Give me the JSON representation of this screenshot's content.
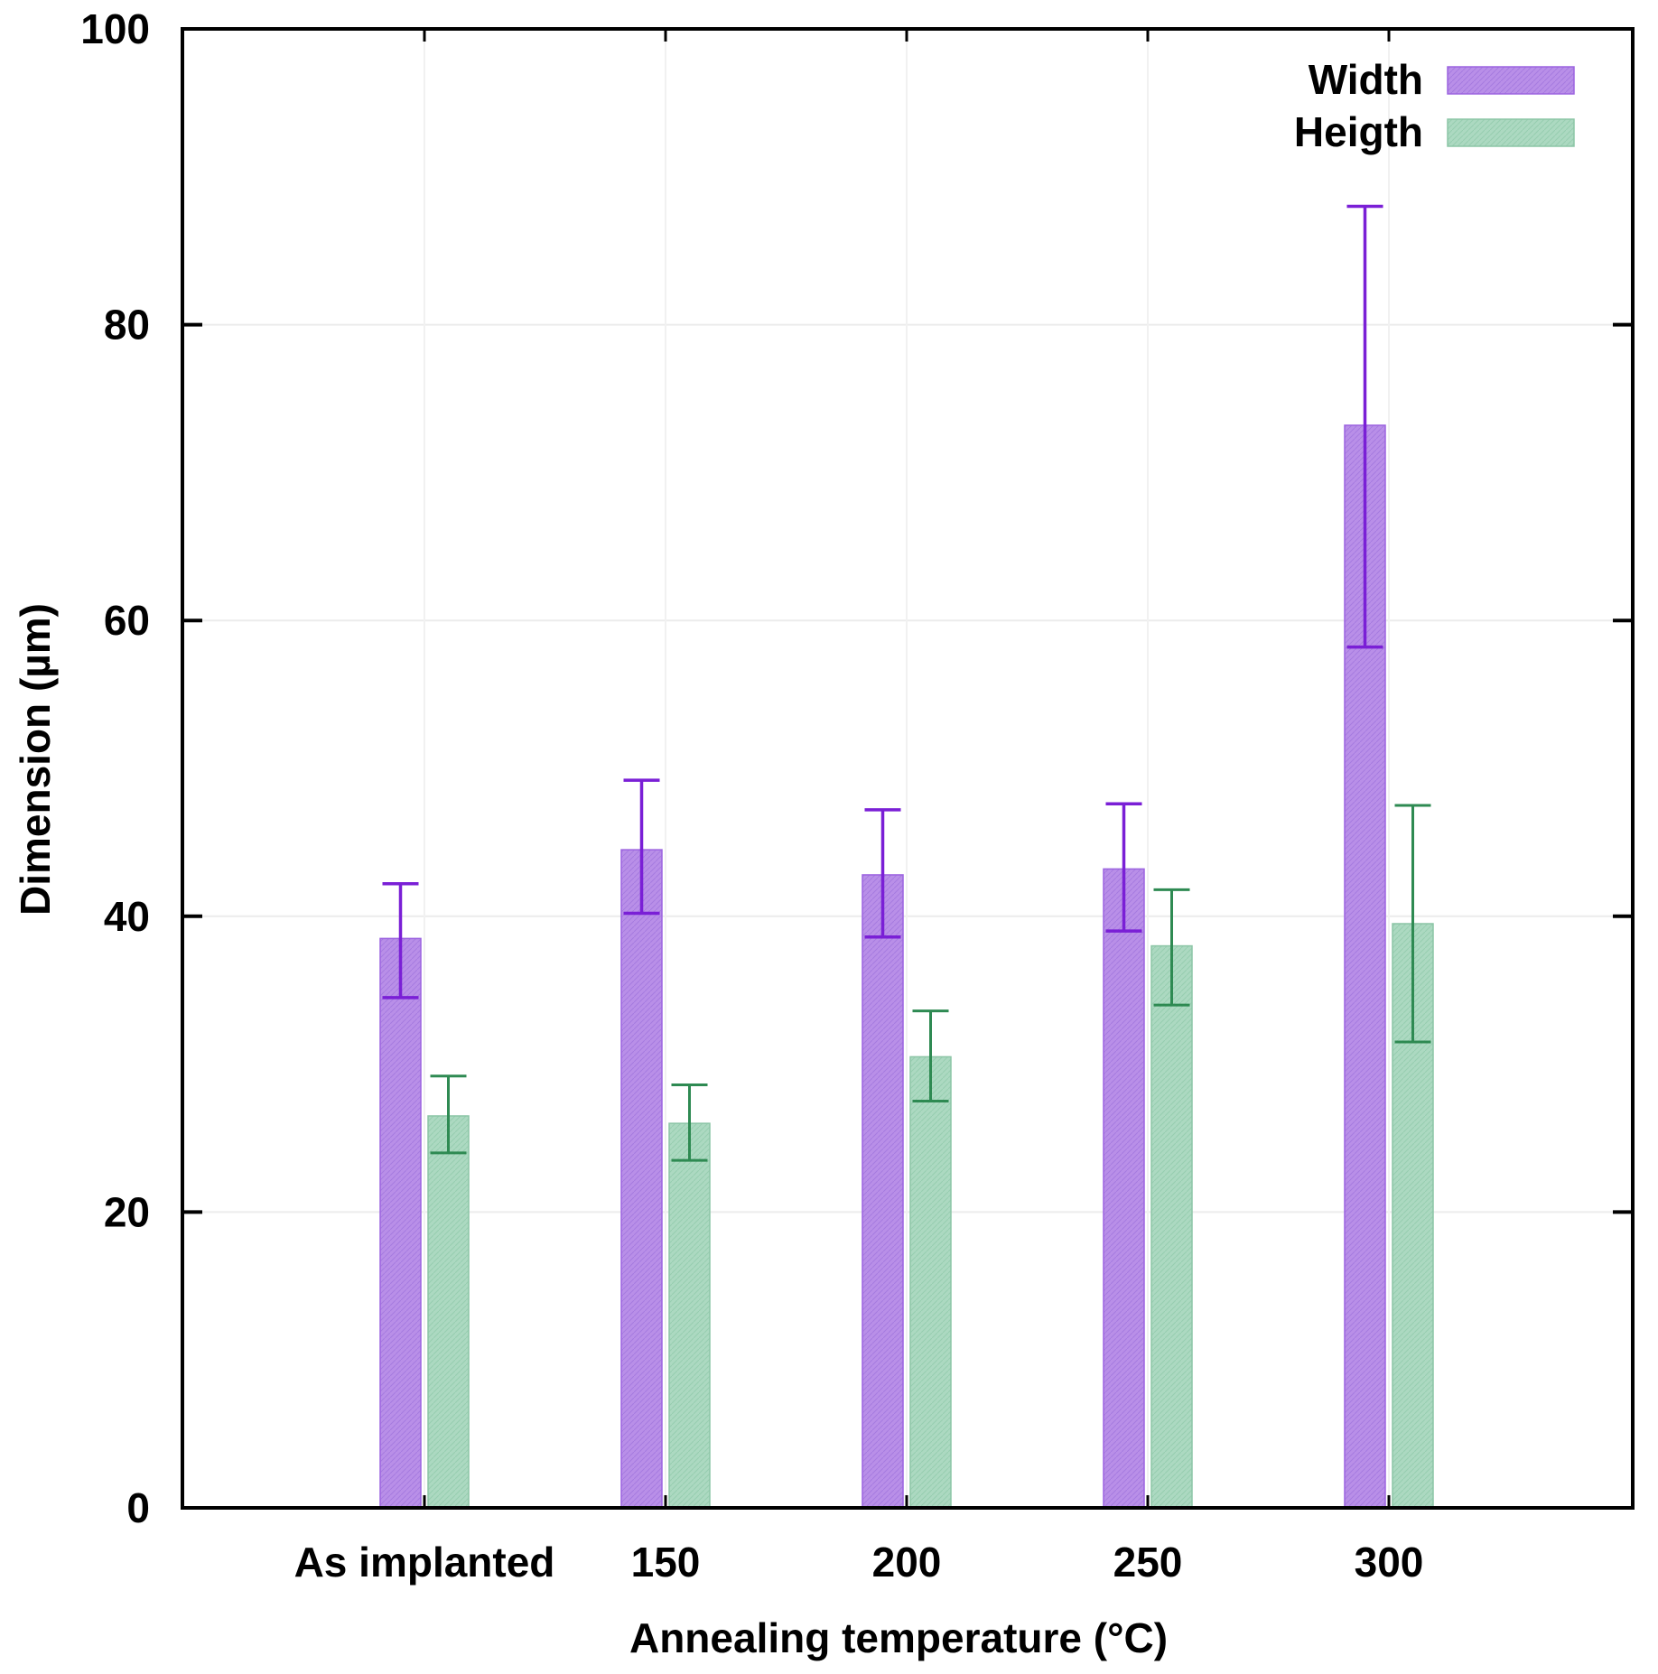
{
  "chart_data": {
    "type": "bar",
    "title": "",
    "xlabel": "Annealing temperature (°C)",
    "ylabel": "Dimension (µm)",
    "ylim": [
      0,
      100
    ],
    "yticks": [
      "0",
      "20",
      "40",
      "60",
      "80",
      "100"
    ],
    "categories": [
      "As implanted",
      "150",
      "200",
      "250",
      "300"
    ],
    "series": [
      {
        "name": "Width",
        "color": "#b48ae6",
        "stroke": "#9c63e0",
        "error_color": "#7a1fd6",
        "values": [
          38.5,
          44.5,
          42.8,
          43.2,
          73.2
        ],
        "error_low": [
          34.5,
          40.2,
          38.6,
          39.0,
          58.2
        ],
        "error_high": [
          42.2,
          49.2,
          47.2,
          47.6,
          88.0
        ]
      },
      {
        "name": "Heigth",
        "color": "#a9d7bf",
        "stroke": "#8cc5a6",
        "error_color": "#2e8a52",
        "values": [
          26.5,
          26.0,
          30.5,
          38.0,
          39.5
        ],
        "error_low": [
          24.0,
          23.5,
          27.5,
          34.0,
          31.5
        ],
        "error_high": [
          29.2,
          28.6,
          33.6,
          41.8,
          47.5
        ]
      }
    ],
    "legend": "top-right",
    "grid": true
  }
}
